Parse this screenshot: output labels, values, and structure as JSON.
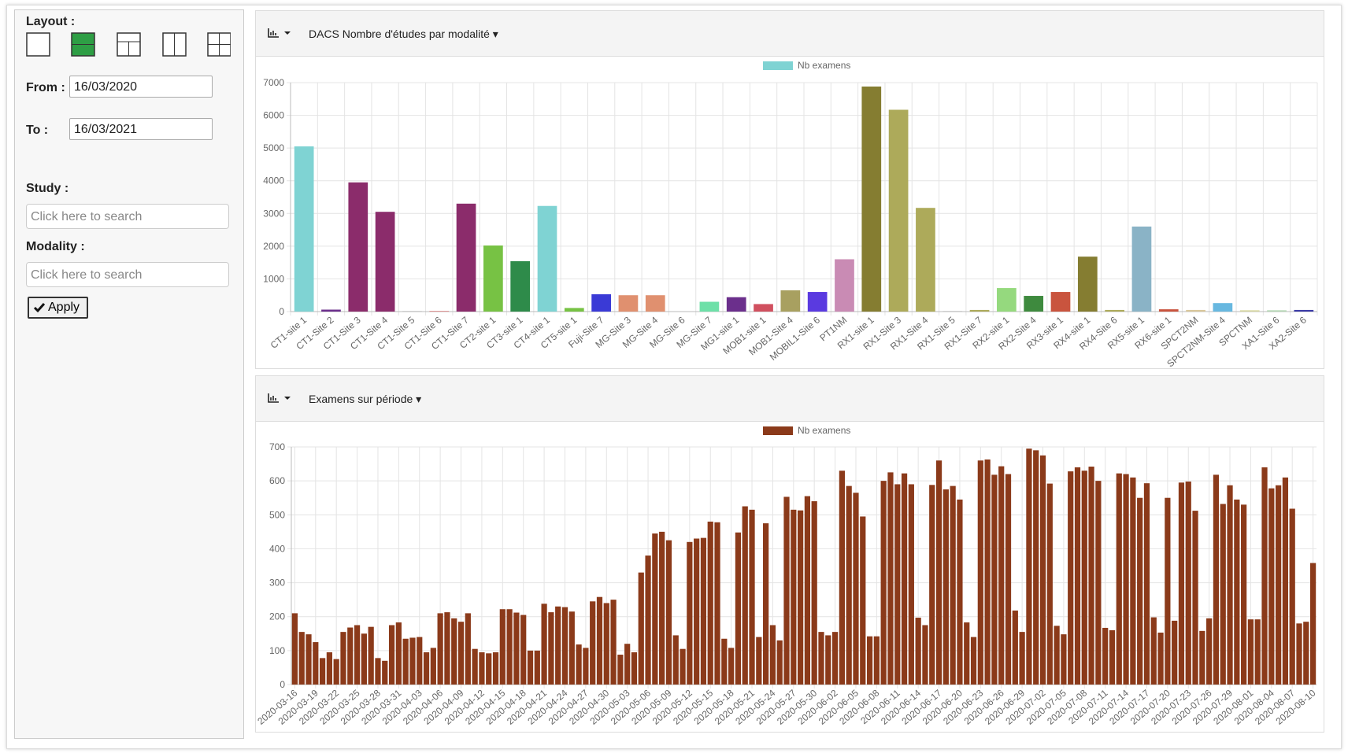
{
  "sidebar": {
    "layout_label": "Layout :",
    "from_label": "From :",
    "from_value": "16/03/2020",
    "to_label": "To :",
    "to_value": "16/03/2021",
    "study_label": "Study :",
    "study_placeholder": "Click here to search",
    "modality_label": "Modality :",
    "modality_placeholder": "Click here to search",
    "apply": "Apply"
  },
  "chart_data": [
    {
      "type": "bar",
      "title": "DACS Nombre d'études par modalité",
      "grid": true,
      "categories": [
        "CT1-site 1",
        "CT1-Site 2",
        "CT1-Site 3",
        "CT1-Site 4",
        "CT1-Site 5",
        "CT1-Site 6",
        "CT1-Site 7",
        "CT2-site 1",
        "CT3-site 1",
        "CT4-site 1",
        "CT5-site 1",
        "Fuji-Site 7",
        "MG-Site 3",
        "MG-Site 4",
        "MG-Site 6",
        "MG-Site 7",
        "MG1-site 1",
        "MOB1-site 1",
        "MOB1-Site 4",
        "MOBIL1-Site 6",
        "PT1NM",
        "RX1-site 1",
        "RX1-Site 3",
        "RX1-Site 4",
        "RX1-Site 5",
        "RX1-Site 7",
        "RX2-site 1",
        "RX2-Site 4",
        "RX3-site 1",
        "RX4-site 1",
        "RX4-Site 6",
        "RX5-site 1",
        "RX6-site 1",
        "SPCT2NM",
        "SPCT2NM-Site 4",
        "SPCTNM",
        "XA1-Site 6",
        "XA2-Site 6"
      ],
      "series": [
        {
          "name": "Nb examens",
          "color": "#7fd3d3",
          "colors": [
            "#7fd3d3",
            "#6b2f8c",
            "#8b2c6b",
            "#8b2c6b",
            "#999999",
            "#cc5555",
            "#8b2c6b",
            "#77c244",
            "#2e8b4a",
            "#7fd3d3",
            "#77c244",
            "#3a3ad6",
            "#e0906f",
            "#e0906f",
            "#999999",
            "#6ee0a8",
            "#6b2f8c",
            "#d0505f",
            "#a8a060",
            "#5a3ae0",
            "#c98bb4",
            "#857d31",
            "#adaa5a",
            "#adaa5a",
            "#999999",
            "#adaa5a",
            "#95d97e",
            "#3e8a3e",
            "#c9543e",
            "#857d31",
            "#adaa5a",
            "#8ab3c6",
            "#c9543e",
            "#d9c79a",
            "#68b8e0",
            "#d6d6a0",
            "#b4d6b4",
            "#3a3aa6"
          ],
          "values": [
            5050,
            60,
            3950,
            3050,
            10,
            15,
            3300,
            2020,
            1540,
            3230,
            110,
            530,
            500,
            500,
            0,
            300,
            440,
            230,
            650,
            600,
            1600,
            6880,
            6170,
            3170,
            10,
            50,
            720,
            480,
            600,
            1680,
            50,
            2600,
            70,
            50,
            260,
            40,
            40,
            50
          ]
        }
      ],
      "ylim": [
        0,
        7000
      ],
      "yticks": [
        0,
        1000,
        2000,
        3000,
        4000,
        5000,
        6000,
        7000
      ]
    },
    {
      "type": "bar",
      "title": "Examens sur période",
      "grid": true,
      "categories": [
        "2020-03-16",
        null,
        null,
        "2020-03-19",
        null,
        null,
        "2020-03-22",
        null,
        null,
        "2020-03-25",
        null,
        null,
        "2020-03-28",
        null,
        null,
        "2020-03-31",
        null,
        null,
        "2020-04-03",
        null,
        null,
        "2020-04-06",
        null,
        null,
        "2020-04-09",
        null,
        null,
        "2020-04-12",
        null,
        null,
        "2020-04-15",
        null,
        null,
        "2020-04-18",
        null,
        null,
        "2020-04-21",
        null,
        null,
        "2020-04-24",
        null,
        null,
        "2020-04-27",
        null,
        null,
        "2020-04-30",
        null,
        null,
        "2020-05-03",
        null,
        null,
        "2020-05-06",
        null,
        null,
        "2020-05-09",
        null,
        null,
        "2020-05-12",
        null,
        null,
        "2020-05-15",
        null,
        null,
        "2020-05-18",
        null,
        null,
        "2020-05-21",
        null,
        null,
        "2020-05-24",
        null,
        null,
        "2020-05-27",
        null,
        null,
        "2020-05-30",
        null,
        null,
        "2020-06-02",
        null,
        null,
        "2020-06-05",
        null,
        null,
        "2020-06-08",
        null,
        null,
        "2020-06-11",
        null,
        null,
        "2020-06-14",
        null,
        null,
        "2020-06-17",
        null,
        null,
        "2020-06-20",
        null,
        null,
        "2020-06-23",
        null,
        null,
        "2020-06-26",
        null,
        null,
        "2020-06-29",
        null,
        null,
        "2020-07-02",
        null,
        null,
        "2020-07-05",
        null,
        null,
        "2020-07-08",
        null,
        null,
        "2020-07-11",
        null,
        null,
        "2020-07-14",
        null,
        null,
        "2020-07-17",
        null,
        null,
        "2020-07-20",
        null,
        null,
        "2020-07-23",
        null,
        null,
        "2020-07-26",
        null,
        null,
        "2020-07-29",
        null,
        null,
        "2020-08-01",
        null,
        null,
        "2020-08-04",
        null,
        null,
        "2020-08-07",
        null,
        null,
        "2020-08-10"
      ],
      "series": [
        {
          "name": "Nb examens",
          "color": "#8b3a1a",
          "values": [
            210,
            155,
            148,
            125,
            78,
            95,
            75,
            155,
            168,
            175,
            150,
            170,
            78,
            70,
            175,
            183,
            135,
            138,
            140,
            95,
            108,
            210,
            213,
            195,
            185,
            210,
            105,
            95,
            92,
            95,
            222,
            222,
            212,
            205,
            100,
            100,
            238,
            213,
            230,
            228,
            215,
            118,
            108,
            245,
            258,
            240,
            250,
            88,
            120,
            95,
            330,
            380,
            445,
            450,
            425,
            145,
            105,
            420,
            430,
            432,
            480,
            478,
            135,
            108,
            448,
            525,
            515,
            140,
            475,
            175,
            130,
            553,
            515,
            513,
            555,
            540,
            155,
            145,
            155,
            630,
            585,
            565,
            495,
            142,
            142,
            600,
            625,
            590,
            622,
            590,
            197,
            175,
            588,
            660,
            575,
            585,
            545,
            183,
            140,
            660,
            663,
            618,
            643,
            620,
            218,
            155,
            695,
            690,
            675,
            592,
            173,
            148,
            628,
            640,
            630,
            642,
            600,
            167,
            160,
            622,
            620,
            610,
            550,
            593,
            198,
            153,
            550,
            188,
            595,
            598,
            512,
            158,
            195,
            618,
            532,
            587,
            545,
            530,
            192,
            192,
            640,
            578,
            587,
            610,
            518,
            180,
            185,
            358
          ]
        }
      ],
      "ylim": [
        0,
        700
      ],
      "yticks": [
        0,
        100,
        200,
        300,
        400,
        500,
        600,
        700
      ]
    }
  ]
}
